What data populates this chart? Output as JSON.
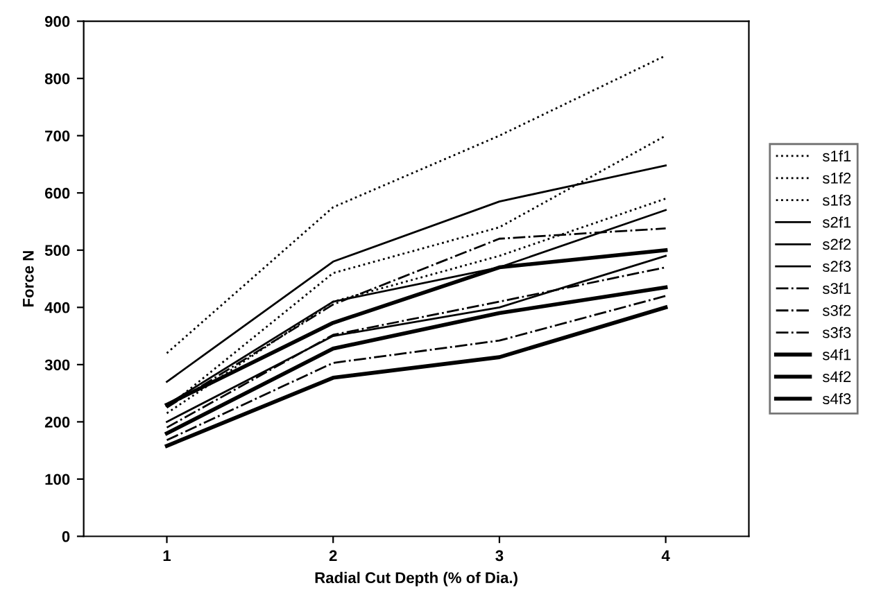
{
  "chart_data": {
    "type": "line",
    "xlabel": "Radial Cut Depth (% of Dia.)",
    "ylabel": "Force N",
    "categories": [
      "1",
      "2",
      "3",
      "4"
    ],
    "ylim": [
      0,
      900
    ],
    "yticks": [
      0,
      100,
      200,
      300,
      400,
      500,
      600,
      700,
      800,
      900
    ],
    "grid": false,
    "legend": "right",
    "marker": "none",
    "series": [
      {
        "name": "s1f1",
        "color": "#000000",
        "line_style": "dotted",
        "values": [
          320,
          575,
          700,
          840
        ]
      },
      {
        "name": "s1f2",
        "color": "#000000",
        "line_style": "dotted",
        "values": [
          225,
          460,
          540,
          700
        ]
      },
      {
        "name": "s1f3",
        "color": "#000000",
        "line_style": "dotted",
        "values": [
          215,
          410,
          490,
          590
        ]
      },
      {
        "name": "s2f1",
        "color": "#000000",
        "line_style": "solid",
        "values": [
          270,
          480,
          585,
          648
        ]
      },
      {
        "name": "s2f2",
        "color": "#000000",
        "line_style": "solid",
        "values": [
          230,
          410,
          470,
          570
        ]
      },
      {
        "name": "s2f3",
        "color": "#000000",
        "line_style": "solid",
        "values": [
          200,
          350,
          400,
          490
        ]
      },
      {
        "name": "s3f1",
        "color": "#000000",
        "line_style": "dashed",
        "values": [
          225,
          405,
          520,
          538
        ]
      },
      {
        "name": "s3f2",
        "color": "#000000",
        "line_style": "dashed",
        "values": [
          190,
          352,
          410,
          470
        ]
      },
      {
        "name": "s3f3",
        "color": "#000000",
        "line_style": "dashed",
        "values": [
          168,
          303,
          342,
          420
        ]
      },
      {
        "name": "s4f1",
        "color": "#000000",
        "line_style": "solid",
        "values": [
          230,
          373,
          470,
          500
        ]
      },
      {
        "name": "s4f2",
        "color": "#000000",
        "line_style": "solid",
        "values": [
          180,
          328,
          390,
          435
        ]
      },
      {
        "name": "s4f3",
        "color": "#000000",
        "line_style": "solid",
        "values": [
          158,
          277,
          313,
          400
        ]
      }
    ]
  }
}
